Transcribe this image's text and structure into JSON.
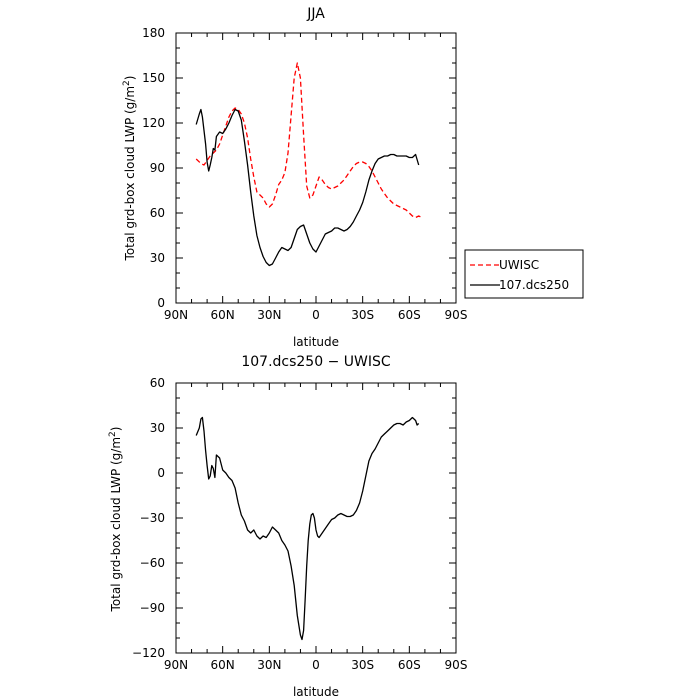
{
  "chart_data": [
    {
      "type": "line",
      "title": "JJA",
      "xlabel": "latitude",
      "ylabel": "Total grd-box cloud LWP (g/m²)",
      "x_ticks": [
        90,
        60,
        30,
        0,
        -30,
        -60,
        -90
      ],
      "x_tick_labels": [
        "90N",
        "60N",
        "30N",
        "0",
        "30S",
        "60S",
        "90S"
      ],
      "xlim": [
        90,
        -90
      ],
      "y_ticks": [
        0,
        30,
        60,
        90,
        120,
        150,
        180
      ],
      "ylim": [
        0,
        180
      ],
      "legend": [
        "UWISC",
        "107.dcs250"
      ],
      "series": [
        {
          "name": "UWISC",
          "color": "#ff0000",
          "dash": "dashed",
          "x": [
            77,
            74,
            72,
            70,
            68,
            66,
            64,
            62,
            60,
            58,
            56,
            54,
            52,
            50,
            48,
            46,
            44,
            42,
            40,
            38,
            36,
            34,
            32,
            30,
            28,
            26,
            24,
            22,
            20,
            18,
            16,
            14,
            12,
            10,
            8,
            6,
            4,
            2,
            0,
            -2,
            -4,
            -6,
            -8,
            -10,
            -12,
            -14,
            -16,
            -18,
            -20,
            -22,
            -24,
            -26,
            -28,
            -30,
            -32,
            -34,
            -36,
            -38,
            -40,
            -42,
            -44,
            -46,
            -48,
            -50,
            -52,
            -54,
            -56,
            -58,
            -60,
            -62,
            -64,
            -66,
            -68
          ],
          "values": [
            96,
            93,
            92,
            95,
            98,
            100,
            102,
            106,
            112,
            118,
            124,
            128,
            130,
            129,
            126,
            120,
            110,
            96,
            84,
            74,
            72,
            70,
            66,
            64,
            66,
            72,
            79,
            82,
            87,
            100,
            125,
            150,
            160,
            150,
            112,
            78,
            70,
            72,
            78,
            84,
            82,
            79,
            77,
            76,
            77,
            78,
            80,
            82,
            85,
            88,
            91,
            93,
            94,
            94,
            93,
            91,
            88,
            84,
            80,
            76,
            73,
            70,
            68,
            66,
            65,
            64,
            63,
            62,
            60,
            58,
            57,
            58,
            57
          ]
        },
        {
          "name": "107.dcs250",
          "color": "#000000",
          "dash": "solid",
          "x": [
            77,
            75,
            74,
            73,
            72,
            71,
            70,
            69,
            68,
            67,
            66,
            65,
            64,
            62,
            60,
            58,
            56,
            54,
            52,
            50,
            48,
            46,
            44,
            42,
            40,
            38,
            36,
            34,
            32,
            30,
            28,
            26,
            24,
            22,
            20,
            18,
            16,
            14,
            12,
            10,
            8,
            6,
            4,
            2,
            0,
            -2,
            -4,
            -6,
            -8,
            -10,
            -12,
            -14,
            -16,
            -18,
            -20,
            -22,
            -24,
            -26,
            -28,
            -30,
            -32,
            -34,
            -36,
            -38,
            -40,
            -42,
            -44,
            -46,
            -48,
            -50,
            -52,
            -54,
            -56,
            -58,
            -60,
            -62,
            -64,
            -66
          ],
          "values": [
            119,
            126,
            129,
            124,
            115,
            106,
            94,
            88,
            92,
            97,
            103,
            102,
            111,
            114,
            113,
            116,
            120,
            125,
            129,
            128,
            122,
            108,
            92,
            74,
            58,
            45,
            37,
            31,
            27,
            25,
            26,
            30,
            34,
            37,
            36,
            35,
            37,
            43,
            49,
            51,
            52,
            46,
            40,
            36,
            34,
            38,
            42,
            46,
            47,
            48,
            50,
            50,
            49,
            48,
            49,
            51,
            54,
            58,
            62,
            67,
            74,
            82,
            88,
            93,
            96,
            97,
            98,
            98,
            99,
            99,
            98,
            98,
            98,
            98,
            97,
            97,
            99,
            92
          ]
        }
      ]
    },
    {
      "type": "line",
      "title": "107.dcs250 − UWISC",
      "xlabel": "latitude",
      "ylabel": "Total grd-box cloud LWP (g/m²)",
      "x_ticks": [
        90,
        60,
        30,
        0,
        -30,
        -60,
        -90
      ],
      "x_tick_labels": [
        "90N",
        "60N",
        "30N",
        "0",
        "30S",
        "60S",
        "90S"
      ],
      "xlim": [
        90,
        -90
      ],
      "y_ticks": [
        -120,
        -90,
        -60,
        -30,
        0,
        30,
        60
      ],
      "ylim": [
        -120,
        60
      ],
      "series": [
        {
          "color": "#000000",
          "dash": "solid",
          "x": [
            77,
            75,
            74,
            73,
            72,
            71,
            70,
            69,
            68,
            67,
            66,
            65,
            64,
            62,
            60,
            58,
            56,
            54,
            52,
            50,
            48,
            46,
            44,
            42,
            40,
            38,
            36,
            34,
            32,
            30,
            28,
            26,
            24,
            22,
            20,
            18,
            16,
            14,
            12,
            10,
            9,
            8,
            7,
            6,
            5,
            4,
            3,
            2,
            1,
            0,
            -1,
            -2,
            -4,
            -6,
            -8,
            -10,
            -12,
            -14,
            -16,
            -18,
            -20,
            -22,
            -24,
            -26,
            -28,
            -30,
            -32,
            -34,
            -36,
            -38,
            -40,
            -42,
            -44,
            -46,
            -48,
            -50,
            -52,
            -54,
            -56,
            -58,
            -60,
            -62,
            -64,
            -65,
            -66
          ],
          "values": [
            25,
            30,
            36,
            37,
            28,
            15,
            5,
            -4,
            -2,
            5,
            3,
            -3,
            12,
            10,
            2,
            0,
            -3,
            -5,
            -10,
            -20,
            -28,
            -32,
            -38,
            -40,
            -38,
            -42,
            -44,
            -42,
            -43,
            -40,
            -36,
            -38,
            -40,
            -45,
            -48,
            -52,
            -62,
            -75,
            -95,
            -108,
            -111,
            -105,
            -85,
            -62,
            -45,
            -34,
            -28,
            -27,
            -30,
            -38,
            -42,
            -43,
            -40,
            -37,
            -34,
            -31,
            -30,
            -28,
            -27,
            -28,
            -29,
            -29,
            -28,
            -25,
            -20,
            -12,
            -2,
            8,
            13,
            16,
            20,
            24,
            26,
            28,
            30,
            32,
            33,
            33,
            32,
            34,
            35,
            37,
            35,
            32,
            33
          ]
        }
      ]
    }
  ]
}
